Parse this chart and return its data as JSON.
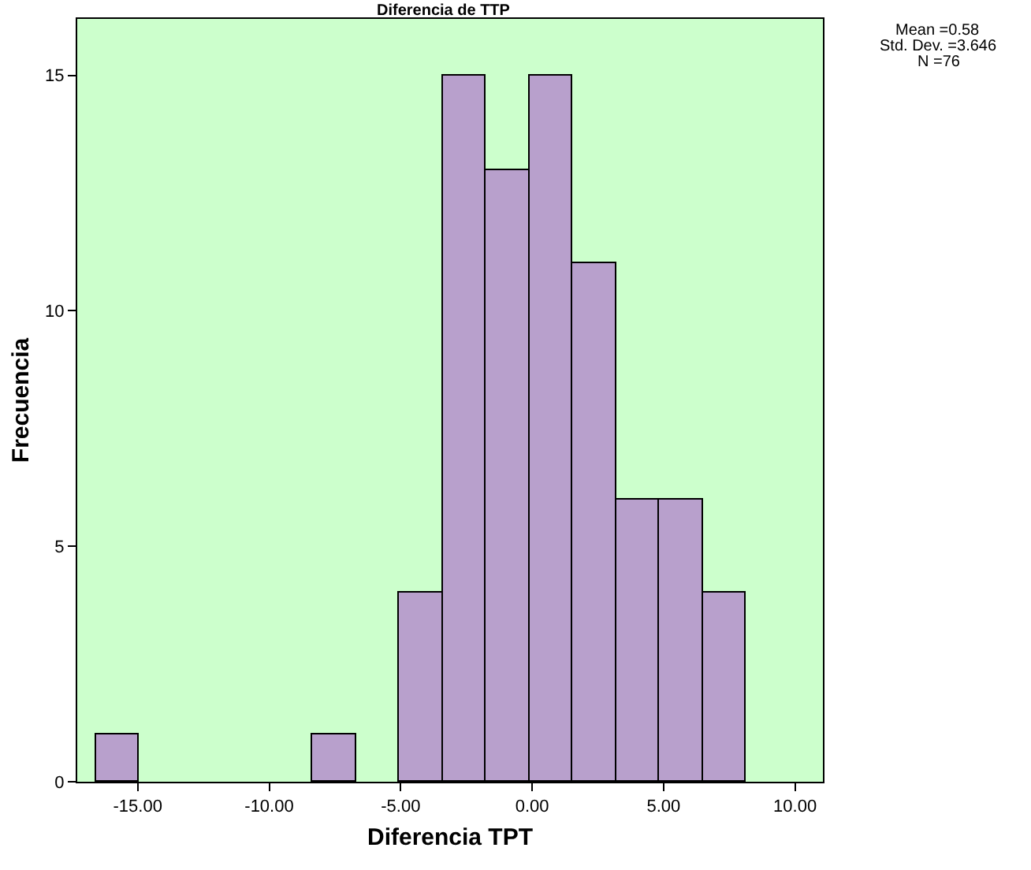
{
  "chart_data": {
    "type": "histogram",
    "title": "Diferencia de TTP",
    "xlabel": "Diferencia TPT",
    "ylabel": "Frecuencia",
    "bins": [
      -16.6,
      -14.95,
      -13.3,
      -11.65,
      -10.0,
      -8.35,
      -6.7,
      -5.05,
      -3.4,
      -1.75,
      -0.1,
      1.55,
      3.2,
      4.85,
      6.5,
      8.15
    ],
    "values": [
      1,
      0,
      0,
      0,
      0,
      1,
      0,
      4,
      15,
      13,
      15,
      11,
      6,
      6,
      4
    ],
    "color": "#b8a0cc",
    "xlim": [
      -17.3,
      11.06
    ],
    "ylim": [
      0,
      16.2
    ],
    "xticks": [
      {
        "value": -15,
        "label": "-15.00"
      },
      {
        "value": -10,
        "label": "-10.00"
      },
      {
        "value": -5,
        "label": "-5.00"
      },
      {
        "value": 0,
        "label": "0.00"
      },
      {
        "value": 5,
        "label": "5.00"
      },
      {
        "value": 10,
        "label": "10.00"
      }
    ],
    "yticks": [
      0,
      5,
      10,
      15
    ],
    "grid": false,
    "annotations": [
      "Mean =0.58",
      "Std. Dev. =3.646",
      "N =76"
    ]
  }
}
